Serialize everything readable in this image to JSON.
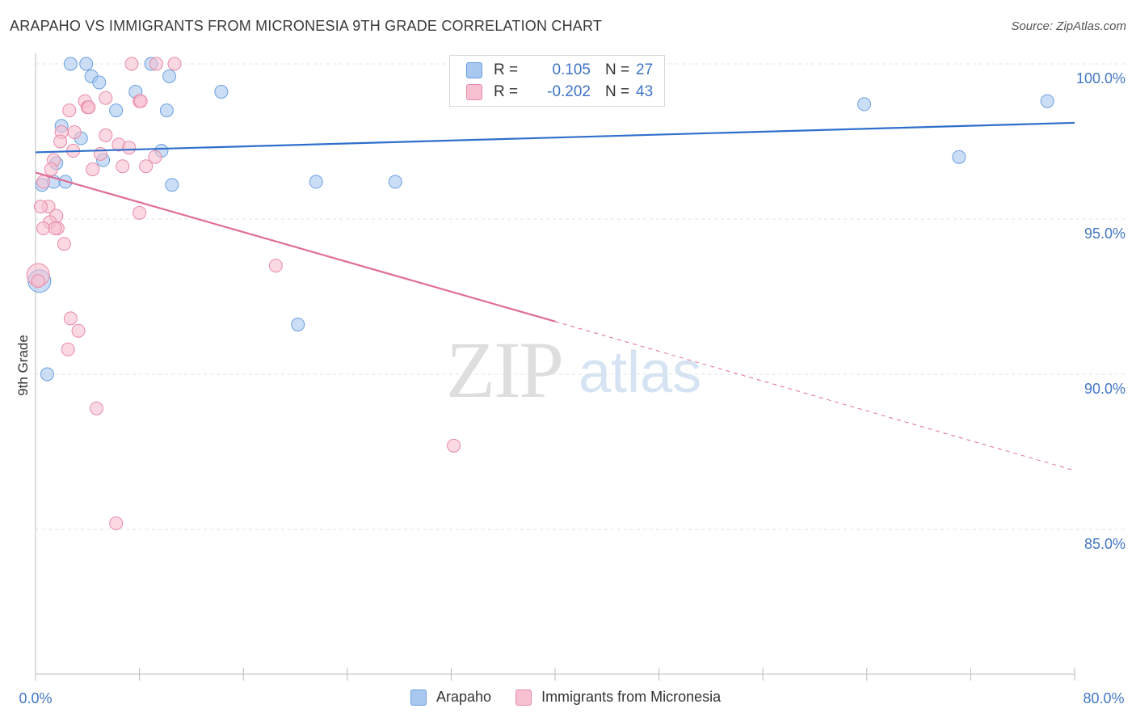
{
  "header": {
    "title": "ARAPAHO VS IMMIGRANTS FROM MICRONESIA 9TH GRADE CORRELATION CHART",
    "source": "Source: ZipAtlas.com"
  },
  "watermark": {
    "zip": "ZIP",
    "atlas": "atlas"
  },
  "legend": {
    "rows": [
      {
        "r_label": "R =",
        "r_value": "0.105",
        "n_label": "N =",
        "n_value": "27",
        "color": "#a9c8f0",
        "border": "#6a9fe0"
      },
      {
        "r_label": "R =",
        "r_value": "-0.202",
        "n_label": "N =",
        "n_value": "43",
        "color": "#f7c0d0",
        "border": "#e88aa8"
      }
    ]
  },
  "bottom_legend": {
    "arapaho": "Arapaho",
    "micronesia": "Immigrants from Micronesia"
  },
  "chart_data": {
    "type": "scatter",
    "title": "ARAPAHO VS IMMIGRANTS FROM MICRONESIA 9TH GRADE CORRELATION CHART",
    "xlabel": "",
    "ylabel": "9th Grade",
    "xlim": [
      0,
      80
    ],
    "ylim": [
      80.5,
      100.8
    ],
    "x_tick_labels": [
      "0.0%",
      "80.0%"
    ],
    "y_ticks": [
      85,
      90,
      95,
      100
    ],
    "y_tick_labels": [
      "85.0%",
      "90.0%",
      "95.0%",
      "100.0%"
    ],
    "grid": true,
    "series": [
      {
        "name": "Arapaho",
        "color": "#a9c8f0",
        "stroke": "#6a9fe0",
        "trend_color": "#2f6fcc",
        "trend": {
          "x0": 0,
          "y0": 97.15,
          "x1": 80,
          "y1": 98.1
        },
        "points": [
          [
            2.7,
            100.0
          ],
          [
            3.9,
            100.0
          ],
          [
            8.9,
            100.0
          ],
          [
            4.3,
            99.6
          ],
          [
            10.3,
            99.6
          ],
          [
            4.9,
            99.4
          ],
          [
            7.7,
            99.1
          ],
          [
            14.3,
            99.1
          ],
          [
            6.2,
            98.5
          ],
          [
            10.1,
            98.5
          ],
          [
            63.8,
            98.7
          ],
          [
            77.9,
            98.8
          ],
          [
            2.0,
            98.0
          ],
          [
            3.5,
            97.6
          ],
          [
            9.7,
            97.2
          ],
          [
            5.2,
            96.9
          ],
          [
            1.6,
            96.8
          ],
          [
            71.1,
            97.0
          ],
          [
            1.4,
            96.2
          ],
          [
            2.3,
            96.2
          ],
          [
            21.6,
            96.2
          ],
          [
            27.7,
            96.2
          ],
          [
            0.5,
            96.1
          ],
          [
            10.5,
            96.1
          ],
          [
            0.3,
            93.0
          ],
          [
            20.2,
            91.6
          ],
          [
            0.9,
            90.0
          ]
        ],
        "sizes": [
          1,
          1,
          1,
          1,
          1,
          1,
          1,
          1,
          1,
          1,
          1,
          1,
          1,
          1,
          1,
          1,
          1,
          1,
          1,
          1,
          1,
          1,
          1,
          1,
          2,
          1,
          1
        ]
      },
      {
        "name": "Immigrants from Micronesia",
        "color": "#f7c0d0",
        "stroke": "#e88aa8",
        "trend_color": "#e06d98",
        "trend": {
          "x0": 0,
          "y0": 96.5,
          "x1": 40,
          "y1": 91.7,
          "dash_to_x": 80,
          "dash_to_y": 86.9
        },
        "points": [
          [
            7.4,
            100.0
          ],
          [
            9.3,
            100.0
          ],
          [
            10.7,
            100.0
          ],
          [
            5.4,
            98.9
          ],
          [
            3.8,
            98.8
          ],
          [
            8.0,
            98.8
          ],
          [
            8.1,
            98.8
          ],
          [
            4.0,
            98.6
          ],
          [
            4.1,
            98.6
          ],
          [
            2.6,
            98.5
          ],
          [
            2.0,
            97.8
          ],
          [
            3.0,
            97.8
          ],
          [
            5.4,
            97.7
          ],
          [
            1.9,
            97.5
          ],
          [
            6.4,
            97.4
          ],
          [
            7.2,
            97.3
          ],
          [
            2.9,
            97.2
          ],
          [
            5.0,
            97.1
          ],
          [
            9.2,
            97.0
          ],
          [
            1.4,
            96.9
          ],
          [
            6.7,
            96.7
          ],
          [
            8.5,
            96.7
          ],
          [
            4.4,
            96.6
          ],
          [
            1.2,
            96.6
          ],
          [
            0.6,
            96.2
          ],
          [
            1.0,
            95.4
          ],
          [
            0.4,
            95.4
          ],
          [
            8.0,
            95.2
          ],
          [
            1.6,
            95.1
          ],
          [
            1.1,
            94.9
          ],
          [
            1.7,
            94.7
          ],
          [
            0.6,
            94.7
          ],
          [
            1.5,
            94.7
          ],
          [
            2.2,
            94.2
          ],
          [
            18.5,
            93.5
          ],
          [
            0.2,
            93.2
          ],
          [
            2.7,
            91.8
          ],
          [
            3.3,
            91.4
          ],
          [
            2.5,
            90.8
          ],
          [
            4.7,
            88.9
          ],
          [
            32.2,
            87.7
          ],
          [
            6.2,
            85.2
          ],
          [
            0.2,
            93.0
          ]
        ],
        "sizes": [
          1,
          1,
          1,
          1,
          1,
          1,
          1,
          1,
          1,
          1,
          1,
          1,
          1,
          1,
          1,
          1,
          1,
          1,
          1,
          1,
          1,
          1,
          1,
          1,
          1,
          1,
          1,
          1,
          1,
          1,
          1,
          1,
          1,
          1,
          1,
          2,
          1,
          1,
          1,
          1,
          1,
          1,
          1
        ]
      }
    ]
  }
}
